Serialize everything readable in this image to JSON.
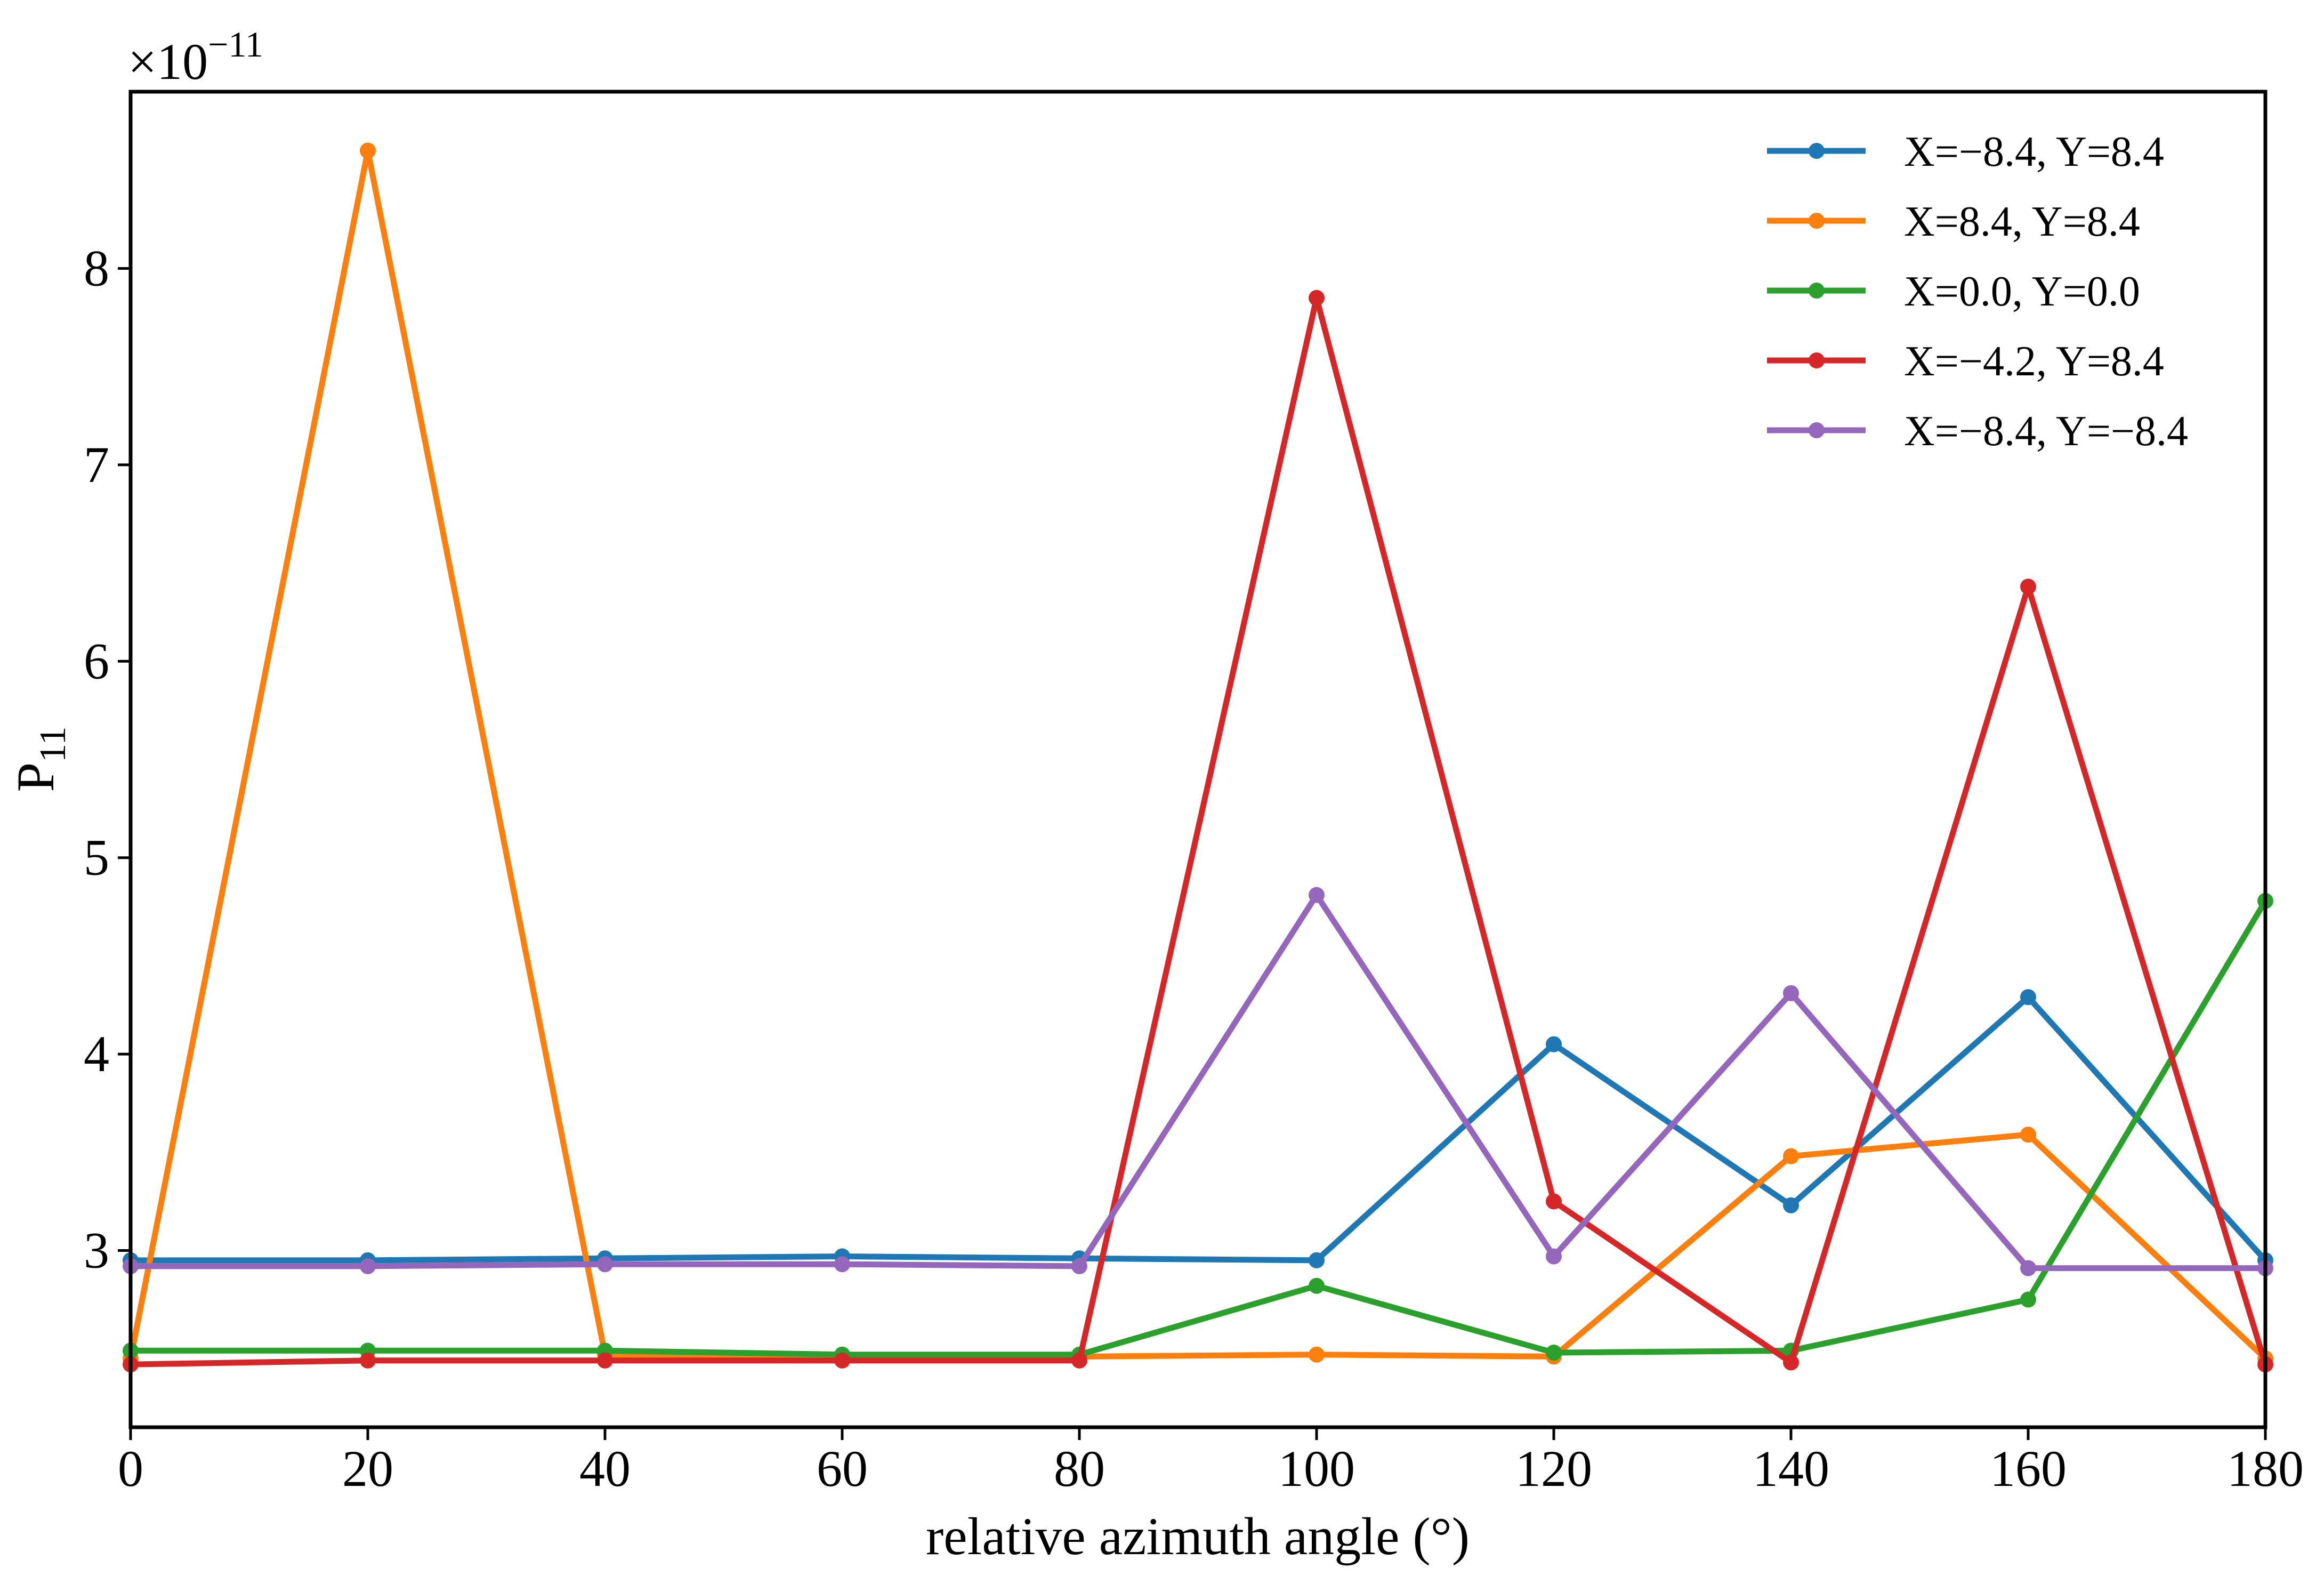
{
  "chart_data": {
    "type": "line",
    "xlabel": "relative azimuth angle (°)",
    "ylabel_main": "P",
    "ylabel_sub": "11",
    "y_exponent_label": "×10",
    "y_exponent_power": "−11",
    "xlim": [
      0,
      180
    ],
    "ylim": [
      2.1,
      8.9
    ],
    "x_ticks": [
      0,
      20,
      40,
      60,
      80,
      100,
      120,
      140,
      160,
      180
    ],
    "y_ticks": [
      3,
      4,
      5,
      6,
      7,
      8
    ],
    "grid": false,
    "legend_position": "top-right",
    "x": [
      0,
      20,
      40,
      60,
      80,
      100,
      120,
      140,
      160,
      180
    ],
    "series": [
      {
        "name": "X=−8.4, Y=8.4",
        "color": "#1f77b4",
        "values": [
          2.95,
          2.95,
          2.96,
          2.97,
          2.96,
          2.95,
          4.05,
          3.23,
          4.29,
          2.95
        ]
      },
      {
        "name": "X=8.4, Y=8.4",
        "color": "#ff7f0e",
        "values": [
          2.45,
          8.6,
          2.47,
          2.46,
          2.46,
          2.47,
          2.46,
          3.48,
          3.59,
          2.45
        ]
      },
      {
        "name": "X=0.0, Y=0.0",
        "color": "#2ca02c",
        "values": [
          2.49,
          2.49,
          2.49,
          2.47,
          2.47,
          2.82,
          2.48,
          2.49,
          2.75,
          4.78
        ]
      },
      {
        "name": "X=−4.2, Y=8.4",
        "color": "#d62728",
        "values": [
          2.42,
          2.44,
          2.44,
          2.44,
          2.44,
          7.85,
          3.25,
          2.43,
          6.38,
          2.42
        ]
      },
      {
        "name": "X=−8.4, Y=−8.4",
        "color": "#9467bd",
        "values": [
          2.92,
          2.92,
          2.93,
          2.93,
          2.92,
          4.81,
          2.97,
          4.31,
          2.91,
          2.91
        ]
      }
    ]
  }
}
